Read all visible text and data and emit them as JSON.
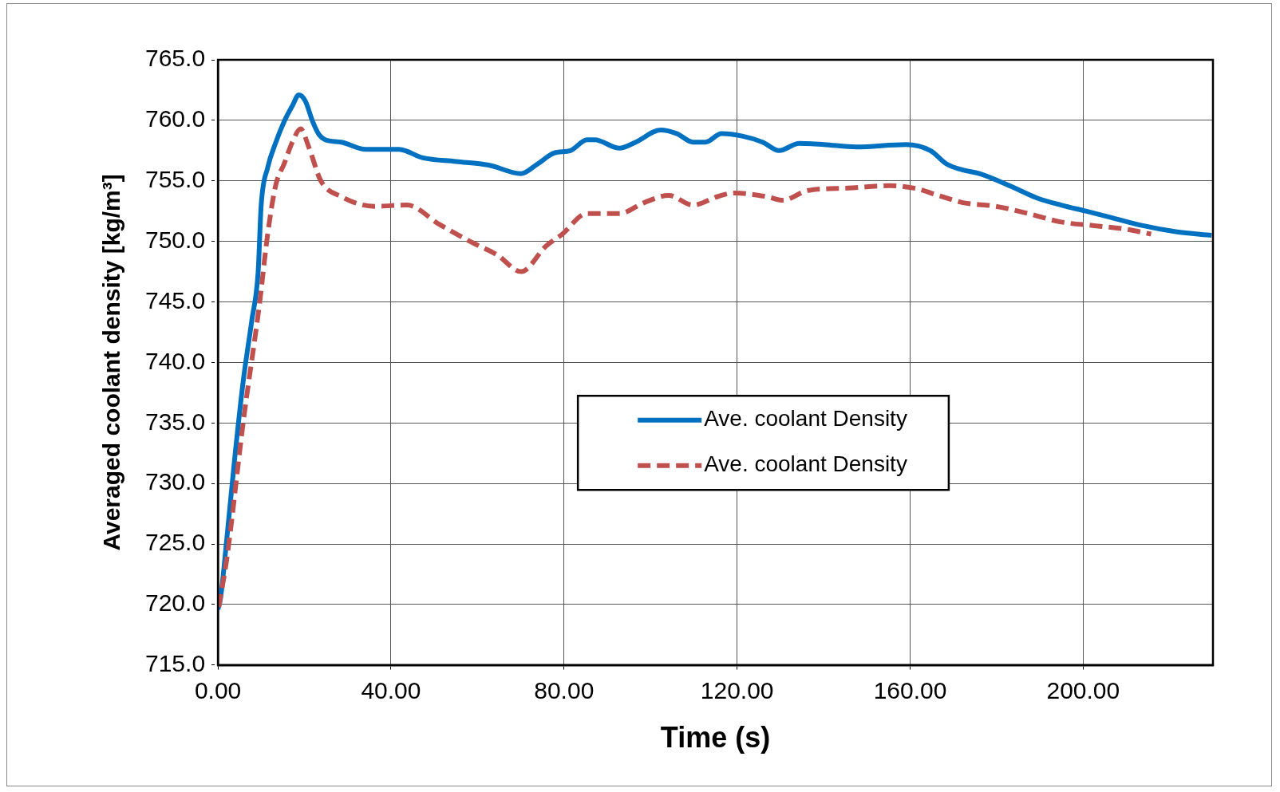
{
  "chart_data": {
    "type": "line",
    "xlabel": "Time (s)",
    "ylabel": "Averaged coolant density [kg/m³]",
    "xlim": [
      0,
      230
    ],
    "ylim": [
      715,
      765
    ],
    "xticks": [
      {
        "value": 0,
        "label": "0.00"
      },
      {
        "value": 40,
        "label": "40.00"
      },
      {
        "value": 80,
        "label": "80.00"
      },
      {
        "value": 120,
        "label": "120.00"
      },
      {
        "value": 160,
        "label": "160.00"
      },
      {
        "value": 200,
        "label": "200.00"
      }
    ],
    "yticks": [
      {
        "value": 715,
        "label": "715.0"
      },
      {
        "value": 720,
        "label": "720.0"
      },
      {
        "value": 725,
        "label": "725.0"
      },
      {
        "value": 730,
        "label": "730.0"
      },
      {
        "value": 735,
        "label": "735.0"
      },
      {
        "value": 740,
        "label": "740.0"
      },
      {
        "value": 745,
        "label": "745.0"
      },
      {
        "value": 750,
        "label": "750.0"
      },
      {
        "value": 755,
        "label": "755.0"
      },
      {
        "value": 760,
        "label": "760.0"
      },
      {
        "value": 765,
        "label": "765.0"
      }
    ],
    "grid": true,
    "legend": "center",
    "marker": "none",
    "series": [
      {
        "name": "Ave. coolant Density",
        "color": "#0070c0",
        "line_style": "solid",
        "x": [
          0,
          0.6,
          2.1,
          4,
          5.9,
          7.8,
          9.3,
          10,
          11.5,
          13.4,
          15.3,
          17.2,
          18.7,
          20.2,
          21.9,
          23.4,
          24.8,
          28.5,
          34.2,
          41.8,
          47.4,
          55,
          62.6,
          70.1,
          73.9,
          77.7,
          81.5,
          85.3,
          87.1,
          92.8,
          96.6,
          102.3,
          106.1,
          109.8,
          112.7,
          116.4,
          121.2,
          125.9,
          129.7,
          134.4,
          140.1,
          147.6,
          159,
          164.7,
          168.4,
          172.2,
          176,
          183.6,
          189.2,
          194.9,
          200.6,
          206.2,
          213.8,
          221.4,
          229.7
        ],
        "values": [
          719.6,
          720.5,
          725.6,
          732.5,
          738.6,
          743.4,
          747.5,
          753,
          756.1,
          758.2,
          759.9,
          761.2,
          762.1,
          761.6,
          759.9,
          758.8,
          758.4,
          758.2,
          757.6,
          757.6,
          756.9,
          756.6,
          756.3,
          755.6,
          756.4,
          757.3,
          757.5,
          758.4,
          758.4,
          757.7,
          758.2,
          759.2,
          758.9,
          758.2,
          758.2,
          758.9,
          758.7,
          758.2,
          757.5,
          758.1,
          758,
          757.8,
          758,
          757.5,
          756.4,
          755.9,
          755.6,
          754.5,
          753.6,
          753,
          752.5,
          752,
          751.3,
          750.8,
          750.5
        ]
      },
      {
        "name": "Ave. coolant Density",
        "color": "#c0504d",
        "line_style": "dashed",
        "x": [
          0.2,
          2.1,
          5.9,
          9.6,
          11.5,
          13.4,
          15.3,
          17.2,
          19.1,
          21,
          23.8,
          28.5,
          36.1,
          43.7,
          51.2,
          58.8,
          64.5,
          70.1,
          75.8,
          79.6,
          85.3,
          92.8,
          98.5,
          104.2,
          109.8,
          115.5,
          119.3,
          126.8,
          130.6,
          136.3,
          145.7,
          155.2,
          160.9,
          166.5,
          172.2,
          179.8,
          187.3,
          194.9,
          202.5,
          210,
          215.7
        ],
        "values": [
          719.8,
          723.9,
          735.2,
          744.8,
          750.6,
          754.7,
          756.4,
          758.2,
          759.3,
          757.8,
          755,
          753.7,
          752.9,
          753,
          751.4,
          749.9,
          748.9,
          747.5,
          749.6,
          750.6,
          752.3,
          752.3,
          753.2,
          753.8,
          753,
          753.7,
          754,
          753.7,
          753.4,
          754.2,
          754.4,
          754.6,
          754.4,
          753.8,
          753.2,
          752.9,
          752.3,
          751.6,
          751.3,
          751,
          750.6
        ]
      }
    ]
  }
}
